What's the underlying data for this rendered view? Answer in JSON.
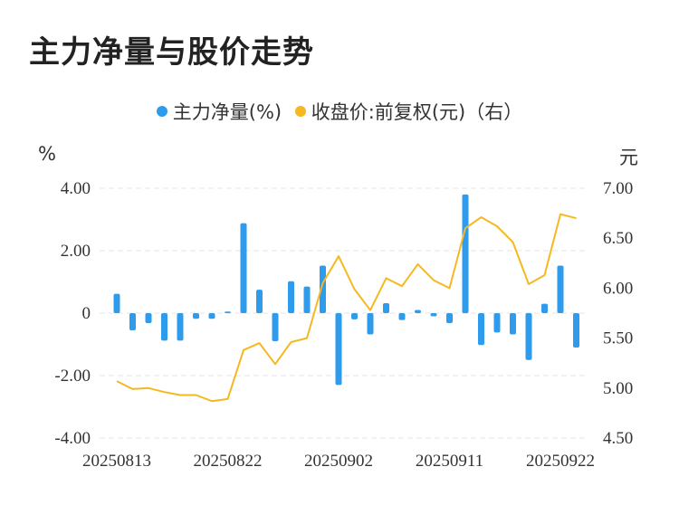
{
  "title": "主力净量与股价走势",
  "legend": {
    "left": "主力净量(%)",
    "right": "收盘价:前复权(元)（右）"
  },
  "units": {
    "left": "%",
    "right": "元"
  },
  "colors": {
    "bar": "#2f9bec",
    "line": "#f5b820",
    "grid": "#e6e6e6"
  },
  "chart_data": {
    "type": "bar+line",
    "title": "主力净量与股价走势",
    "x_labels_shown": [
      "20250813",
      "20250822",
      "20250902",
      "20250911",
      "20250922"
    ],
    "x_label_indices": [
      0,
      7,
      14,
      21,
      28
    ],
    "y_left": {
      "label": "%",
      "range": [
        -4,
        4
      ],
      "ticks": [
        "4.00",
        "2.00",
        "0",
        "-2.00",
        "-4.00"
      ]
    },
    "y_right": {
      "label": "元",
      "range": [
        4.5,
        7.0
      ],
      "ticks": [
        "7.00",
        "6.50",
        "6.00",
        "5.50",
        "5.00",
        "4.50"
      ]
    },
    "series": [
      {
        "name": "主力净量(%)",
        "type": "bar",
        "axis": "left",
        "values": [
          0.62,
          -0.55,
          -0.32,
          -0.88,
          -0.88,
          -0.18,
          -0.18,
          0.05,
          2.88,
          0.75,
          -0.9,
          1.02,
          0.85,
          1.52,
          -2.3,
          -0.2,
          -0.68,
          0.32,
          -0.22,
          0.1,
          -0.1,
          -0.32,
          3.8,
          -1.02,
          -0.62,
          -0.68,
          -1.5,
          0.3,
          1.52,
          -1.1
        ]
      },
      {
        "name": "收盘价:前复权(元)（右）",
        "type": "line",
        "axis": "right",
        "values": [
          5.07,
          4.99,
          5.0,
          4.96,
          4.93,
          4.93,
          4.87,
          4.89,
          5.38,
          5.45,
          5.24,
          5.46,
          5.5,
          6.05,
          6.32,
          5.99,
          5.78,
          6.1,
          6.02,
          6.24,
          6.08,
          6.0,
          6.6,
          6.71,
          6.62,
          6.46,
          6.04,
          6.13,
          6.74,
          6.7
        ]
      }
    ]
  }
}
